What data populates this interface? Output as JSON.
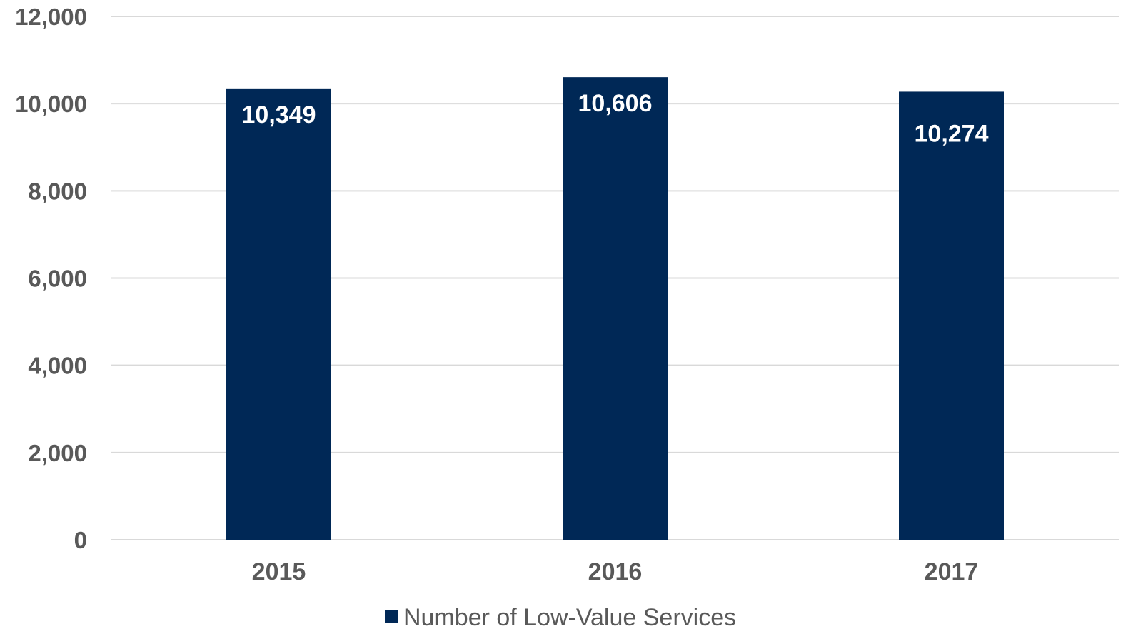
{
  "chart_data": {
    "type": "bar",
    "categories": [
      "2015",
      "2016",
      "2017"
    ],
    "series": [
      {
        "name": "Number of Low-Value Services",
        "values": [
          10349,
          10606,
          10274
        ],
        "labels": [
          "10,349",
          "10,606",
          "10,274"
        ],
        "color": "#002856"
      }
    ],
    "ylim": [
      0,
      12000
    ],
    "yticks": [
      0,
      2000,
      4000,
      6000,
      8000,
      10000,
      12000
    ],
    "ytick_labels": [
      "0",
      "2,000",
      "4,000",
      "6,000",
      "8,000",
      "10,000",
      "12,000"
    ],
    "grid": true,
    "legend_position": "bottom-center",
    "gridline_color": "#d9d9d9",
    "text_color": "#595959",
    "data_label_color": "#ffffff"
  }
}
